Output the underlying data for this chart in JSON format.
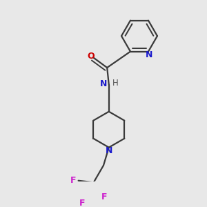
{
  "background_color": "#e8e8e8",
  "bond_color": "#3a3a3a",
  "nitrogen_color": "#1a1acc",
  "oxygen_color": "#cc0000",
  "fluorine_color": "#cc22cc",
  "line_width": 1.6,
  "figsize": [
    3.0,
    3.0
  ],
  "dpi": 100,
  "xlim": [
    0,
    10
  ],
  "ylim": [
    0,
    10
  ]
}
